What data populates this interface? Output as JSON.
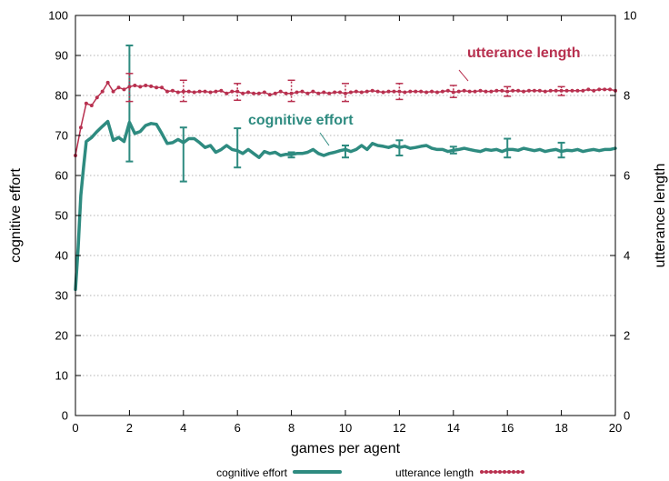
{
  "chart_data": {
    "type": "line",
    "title": "",
    "xlabel": "games per agent",
    "ylabel_left": "cognitive effort",
    "ylabel_right": "utterance length",
    "xlim": [
      0,
      20
    ],
    "ylim_left": [
      0,
      100
    ],
    "ylim_right": [
      0,
      10
    ],
    "x_ticks": [
      "0",
      "2",
      "4",
      "6",
      "8",
      "10",
      "12",
      "14",
      "16",
      "18",
      "20"
    ],
    "y_left_ticks": [
      "0",
      "10",
      "20",
      "30",
      "40",
      "50",
      "60",
      "70",
      "80",
      "90",
      "100"
    ],
    "y_right_ticks": [
      "0",
      "2",
      "4",
      "6",
      "8",
      "10"
    ],
    "grid": "horizontal",
    "legend_placement": "bottom",
    "series": [
      {
        "name": "cognitive effort",
        "axis": "left",
        "color": "#2e8b80",
        "style": "thick-line",
        "x": [
          0,
          0.1,
          0.2,
          0.3,
          0.4,
          0.6,
          0.8,
          1.0,
          1.2,
          1.4,
          1.6,
          1.8,
          2.0,
          2.2,
          2.4,
          2.6,
          2.8,
          3.0,
          3.2,
          3.4,
          3.6,
          3.8,
          4.0,
          4.2,
          4.4,
          4.6,
          4.8,
          5.0,
          5.2,
          5.4,
          5.6,
          5.8,
          6.0,
          6.2,
          6.4,
          6.6,
          6.8,
          7.0,
          7.2,
          7.4,
          7.6,
          7.8,
          8.0,
          8.2,
          8.4,
          8.6,
          8.8,
          9.0,
          9.2,
          9.4,
          9.6,
          9.8,
          10.0,
          10.2,
          10.4,
          10.6,
          10.8,
          11.0,
          11.2,
          11.4,
          11.6,
          11.8,
          12.0,
          12.2,
          12.4,
          12.6,
          12.8,
          13.0,
          13.2,
          13.4,
          13.6,
          13.8,
          14.0,
          14.2,
          14.4,
          14.6,
          14.8,
          15.0,
          15.2,
          15.4,
          15.6,
          15.8,
          16.0,
          16.2,
          16.4,
          16.6,
          16.8,
          17.0,
          17.2,
          17.4,
          17.6,
          17.8,
          18.0,
          18.2,
          18.4,
          18.6,
          18.8,
          19.0,
          19.2,
          19.4,
          19.6,
          19.8,
          20.0
        ],
        "values": [
          31.5,
          42,
          55,
          62,
          68.5,
          69.5,
          71,
          72.3,
          73.5,
          68.8,
          69.5,
          68.5,
          73.3,
          70.5,
          71,
          72.5,
          73,
          72.8,
          70.5,
          68,
          68.2,
          69,
          68.2,
          69.2,
          69.2,
          68.2,
          67,
          67.5,
          65.8,
          66.5,
          67.5,
          66.5,
          66.2,
          65.5,
          66.5,
          65.5,
          64.5,
          66,
          65.5,
          65.8,
          65,
          65.3,
          65.2,
          65.5,
          65.5,
          65.8,
          66.5,
          65.5,
          65,
          65.5,
          65.8,
          66.2,
          66.5,
          66,
          66.5,
          67.5,
          66.5,
          68,
          67.5,
          67.3,
          67,
          67.5,
          67,
          67.3,
          66.8,
          67,
          67.3,
          67.5,
          66.8,
          66.5,
          66.5,
          66,
          66.3,
          66.5,
          66.8,
          66.5,
          66.2,
          66,
          66.5,
          66.3,
          66.5,
          66,
          66.5,
          66.5,
          66.3,
          66.8,
          66.5,
          66.2,
          66.5,
          66,
          66.3,
          66.5,
          66,
          66.3,
          66.2,
          66.5,
          66,
          66.3,
          66.5,
          66.2,
          66.5,
          66.5,
          66.8
        ],
        "errorbars": [
          {
            "x": 2,
            "low": 63.5,
            "high": 92.5
          },
          {
            "x": 4,
            "low": 58.5,
            "high": 72
          },
          {
            "x": 6,
            "low": 62,
            "high": 71.8
          },
          {
            "x": 8,
            "low": 64.5,
            "high": 65.8
          },
          {
            "x": 10,
            "low": 64.5,
            "high": 67.5
          },
          {
            "x": 12,
            "low": 65,
            "high": 68.8
          },
          {
            "x": 14,
            "low": 65.5,
            "high": 67.2
          },
          {
            "x": 16,
            "low": 64.5,
            "high": 69.2
          },
          {
            "x": 18,
            "low": 64.5,
            "high": 68.2
          }
        ]
      },
      {
        "name": "utterance length",
        "axis": "right",
        "color": "#b8304f",
        "style": "dotted-marker-line",
        "x": [
          0,
          0.2,
          0.4,
          0.6,
          0.8,
          1.0,
          1.2,
          1.4,
          1.6,
          1.8,
          2.0,
          2.2,
          2.4,
          2.6,
          2.8,
          3.0,
          3.2,
          3.4,
          3.6,
          3.8,
          4.0,
          4.2,
          4.4,
          4.6,
          4.8,
          5.0,
          5.2,
          5.4,
          5.6,
          5.8,
          6.0,
          6.2,
          6.4,
          6.6,
          6.8,
          7.0,
          7.2,
          7.4,
          7.6,
          7.8,
          8.0,
          8.2,
          8.4,
          8.6,
          8.8,
          9.0,
          9.2,
          9.4,
          9.6,
          9.8,
          10.0,
          10.2,
          10.4,
          10.6,
          10.8,
          11.0,
          11.2,
          11.4,
          11.6,
          11.8,
          12.0,
          12.2,
          12.4,
          12.6,
          12.8,
          13.0,
          13.2,
          13.4,
          13.6,
          13.8,
          14.0,
          14.2,
          14.4,
          14.6,
          14.8,
          15.0,
          15.2,
          15.4,
          15.6,
          15.8,
          16.0,
          16.2,
          16.4,
          16.6,
          16.8,
          17.0,
          17.2,
          17.4,
          17.6,
          17.8,
          18.0,
          18.2,
          18.4,
          18.6,
          18.8,
          19.0,
          19.2,
          19.4,
          19.6,
          19.8,
          20.0
        ],
        "values": [
          6.5,
          7.2,
          7.8,
          7.75,
          7.95,
          8.1,
          8.32,
          8.1,
          8.2,
          8.15,
          8.22,
          8.25,
          8.22,
          8.25,
          8.23,
          8.2,
          8.2,
          8.1,
          8.12,
          8.08,
          8.1,
          8.1,
          8.08,
          8.1,
          8.1,
          8.08,
          8.1,
          8.12,
          8.05,
          8.1,
          8.1,
          8.05,
          8.08,
          8.05,
          8.05,
          8.08,
          8.02,
          8.05,
          8.1,
          8.05,
          8.05,
          8.08,
          8.1,
          8.05,
          8.1,
          8.05,
          8.08,
          8.05,
          8.08,
          8.08,
          8.05,
          8.08,
          8.1,
          8.08,
          8.1,
          8.12,
          8.1,
          8.08,
          8.1,
          8.1,
          8.1,
          8.08,
          8.1,
          8.1,
          8.1,
          8.08,
          8.1,
          8.08,
          8.1,
          8.12,
          8.08,
          8.1,
          8.12,
          8.1,
          8.1,
          8.12,
          8.1,
          8.1,
          8.12,
          8.12,
          8.1,
          8.12,
          8.12,
          8.1,
          8.12,
          8.12,
          8.12,
          8.1,
          8.12,
          8.12,
          8.12,
          8.12,
          8.12,
          8.12,
          8.12,
          8.15,
          8.12,
          8.15,
          8.15,
          8.15,
          8.12
        ],
        "errorbars": [
          {
            "x": 2,
            "low": 7.85,
            "high": 8.55
          },
          {
            "x": 4,
            "low": 7.85,
            "high": 8.38
          },
          {
            "x": 6,
            "low": 7.88,
            "high": 8.3
          },
          {
            "x": 8,
            "low": 7.85,
            "high": 8.38
          },
          {
            "x": 10,
            "low": 7.85,
            "high": 8.3
          },
          {
            "x": 12,
            "low": 7.9,
            "high": 8.3
          },
          {
            "x": 14,
            "low": 7.95,
            "high": 8.25
          },
          {
            "x": 16,
            "low": 7.98,
            "high": 8.22
          },
          {
            "x": 18,
            "low": 8.0,
            "high": 8.22
          }
        ]
      }
    ],
    "annotations": [
      {
        "text": "utterance length",
        "series": "utterance length"
      },
      {
        "text": "cognitive effort",
        "series": "cognitive effort"
      }
    ]
  }
}
